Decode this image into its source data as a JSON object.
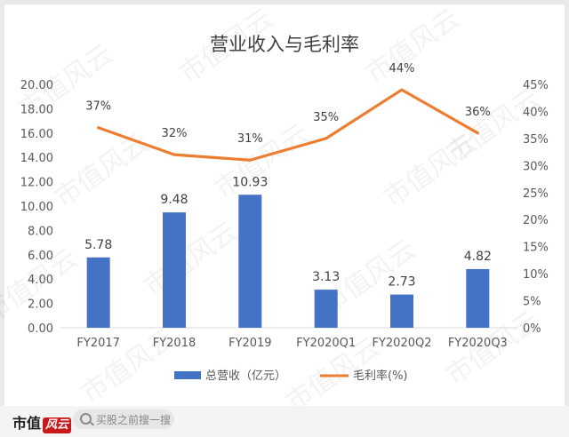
{
  "watermark": "市值风云",
  "footer": {
    "logo_text": "市值",
    "logo_accent": "风云",
    "search_placeholder": "买股之前搜一搜"
  },
  "chart_data": {
    "type": "bar",
    "title": "营业收入与毛利率",
    "categories": [
      "FY2017",
      "FY2018",
      "FY2019",
      "FY2020Q1",
      "FY2020Q2",
      "FY2020Q3"
    ],
    "series": [
      {
        "name": "总营收（亿元）",
        "type": "bar",
        "axis": "left",
        "color": "#4472c4",
        "values": [
          5.78,
          9.48,
          10.93,
          3.13,
          2.73,
          4.82
        ],
        "labels": [
          "5.78",
          "9.48",
          "10.93",
          "3.13",
          "2.73",
          "4.82"
        ]
      },
      {
        "name": "毛利率(%)",
        "type": "line",
        "axis": "right",
        "color": "#ed7d31",
        "values": [
          37,
          32,
          31,
          35,
          44,
          36
        ],
        "labels": [
          "37%",
          "32%",
          "31%",
          "35%",
          "44%",
          "36%"
        ]
      }
    ],
    "y_left": {
      "min": 0,
      "max": 20,
      "step": 2,
      "ticks": [
        "0.00",
        "2.00",
        "4.00",
        "6.00",
        "8.00",
        "10.00",
        "12.00",
        "14.00",
        "16.00",
        "18.00",
        "20.00"
      ]
    },
    "y_right": {
      "min": 0,
      "max": 45,
      "step": 5,
      "ticks": [
        "0%",
        "5%",
        "10%",
        "15%",
        "20%",
        "25%",
        "30%",
        "35%",
        "40%",
        "45%"
      ]
    },
    "grid": false,
    "legend_position": "bottom"
  }
}
